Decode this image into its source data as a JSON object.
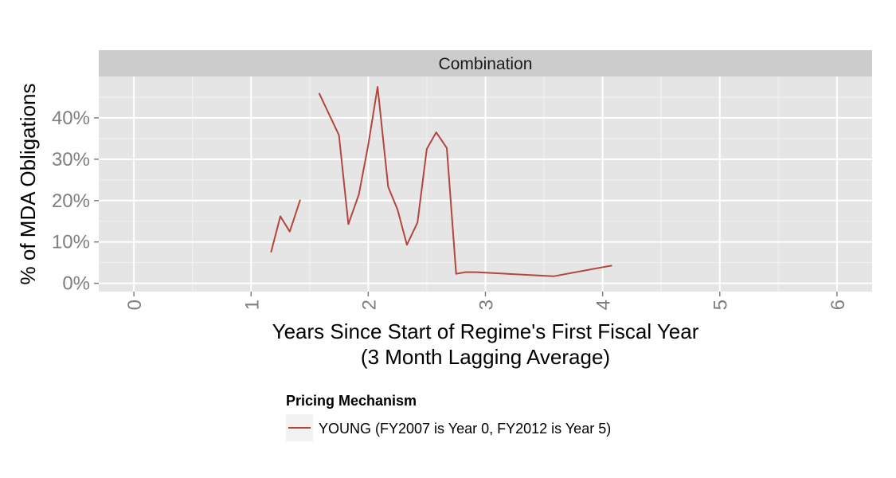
{
  "chart_data": {
    "type": "line",
    "facet_title": "Combination",
    "xlabel_line1": "Years Since Start of Regime's First Fiscal Year",
    "xlabel_line2": "(3 Month Lagging Average)",
    "ylabel": "% of MDA Obligations",
    "xlim": [
      -0.3,
      6.3
    ],
    "ylim": [
      -2,
      50
    ],
    "x_ticks": [
      0,
      1,
      2,
      3,
      4,
      5,
      6
    ],
    "x_tick_labels": [
      "0",
      "1",
      "2",
      "3",
      "4",
      "5",
      "6"
    ],
    "y_ticks": [
      0,
      10,
      20,
      30,
      40
    ],
    "y_tick_labels": [
      "0%",
      "10%",
      "20%",
      "30%",
      "40%"
    ],
    "grid": true,
    "legend_position": "bottom",
    "legend_title": "Pricing Mechanism",
    "series": [
      {
        "name": "YOUNG (FY2007 is Year 0, FY2012 is Year 5)",
        "color": "#b2463f",
        "segments": [
          {
            "x": [
              1.17,
              1.25,
              1.33,
              1.42
            ],
            "y": [
              7.5,
              16.2,
              12.5,
              20.2
            ]
          },
          {
            "x": [
              1.58,
              1.75,
              1.83,
              1.92,
              2.0,
              2.08,
              2.17,
              2.25,
              2.33,
              2.42,
              2.5,
              2.58,
              2.67,
              2.75,
              2.83,
              2.92,
              3.58,
              4.08
            ],
            "y": [
              46.0,
              35.8,
              14.3,
              21.5,
              33.5,
              47.5,
              23.3,
              17.8,
              9.3,
              14.7,
              32.5,
              36.5,
              32.7,
              2.3,
              2.7,
              2.7,
              1.7,
              4.3
            ]
          }
        ]
      }
    ]
  }
}
